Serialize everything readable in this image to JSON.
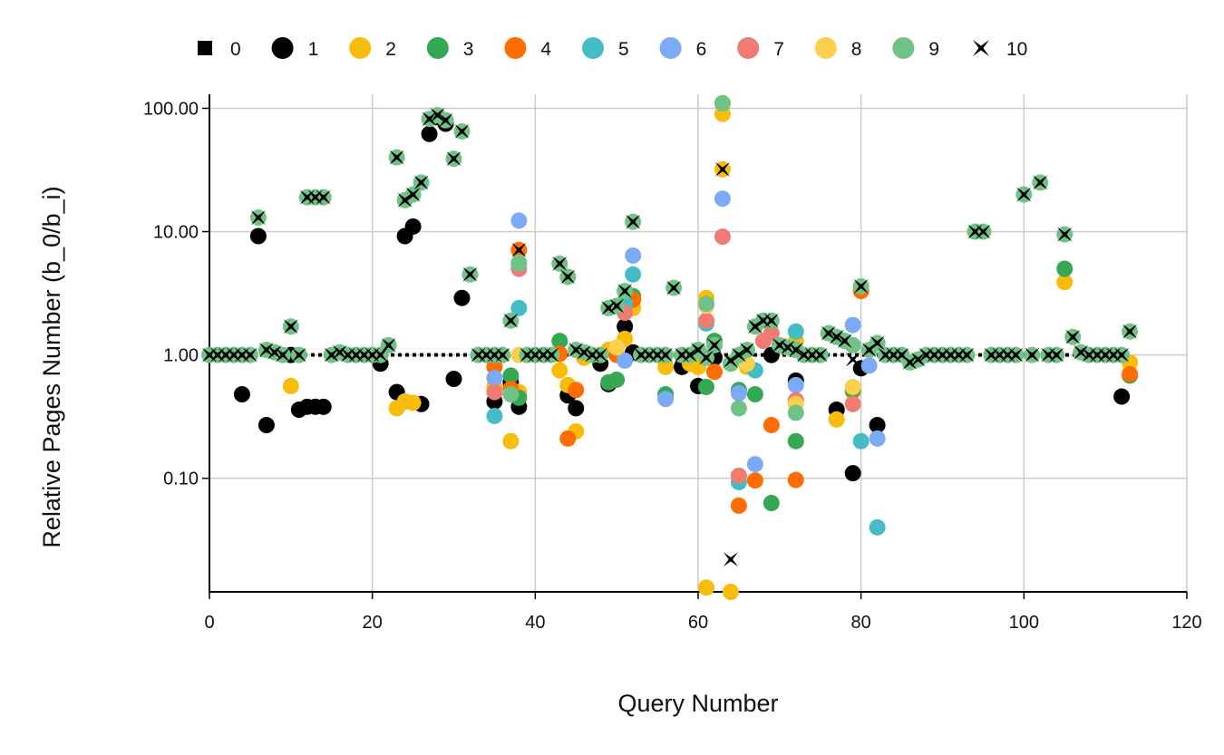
{
  "chart_data": {
    "type": "scatter",
    "xlabel": "Query Number",
    "ylabel": "Relative Pages Number (b_0/b_i)",
    "xlim": [
      0,
      120
    ],
    "ylim": [
      0.012,
      130
    ],
    "yscale": "log",
    "grid": true,
    "legend_position": "top",
    "x_ticks": [
      {
        "value": 0,
        "label": "0"
      },
      {
        "value": 20,
        "label": "20"
      },
      {
        "value": 40,
        "label": "40"
      },
      {
        "value": 60,
        "label": "60"
      },
      {
        "value": 80,
        "label": "80"
      },
      {
        "value": 100,
        "label": "100"
      },
      {
        "value": 120,
        "label": "120"
      }
    ],
    "y_ticks": [
      {
        "value": 0.1,
        "label": "0.10"
      },
      {
        "value": 1,
        "label": "1.00"
      },
      {
        "value": 10,
        "label": "10.00"
      },
      {
        "value": 100,
        "label": "100.00"
      }
    ],
    "series": [
      {
        "name": "0",
        "marker": "square",
        "color": "#000000",
        "style": "dotted-line",
        "x": [
          0,
          113
        ],
        "y": [
          1,
          1
        ]
      },
      {
        "name": "1",
        "marker": "circle",
        "color": "#000000",
        "x": [
          4,
          6,
          7,
          10,
          11,
          12,
          13,
          14,
          21,
          23,
          24,
          25,
          26,
          27,
          28,
          29,
          30,
          31,
          35,
          37,
          38,
          44,
          45,
          48,
          49,
          51,
          52,
          58,
          60,
          61,
          62,
          69,
          72,
          77,
          79,
          80,
          82,
          112
        ],
        "y": [
          0.48,
          9.2,
          0.27,
          1.0,
          0.36,
          0.38,
          0.38,
          0.38,
          0.85,
          0.5,
          9.2,
          11,
          0.4,
          62,
          85,
          75,
          0.64,
          2.9,
          0.42,
          0.6,
          0.38,
          0.47,
          0.37,
          0.85,
          0.58,
          1.7,
          1.05,
          0.8,
          0.56,
          0.95,
          0.95,
          1.0,
          0.62,
          0.36,
          0.11,
          0.78,
          0.27,
          0.46
        ]
      },
      {
        "name": "2",
        "marker": "circle",
        "color": "#f9bc0a",
        "x": [
          10,
          23,
          24,
          25,
          35,
          37,
          38,
          43,
          44,
          45,
          46,
          49,
          51,
          52,
          56,
          59,
          60,
          61,
          61,
          63,
          63,
          64,
          66,
          72,
          77,
          79,
          105,
          113
        ],
        "y": [
          0.56,
          0.37,
          0.42,
          0.41,
          0.55,
          0.2,
          0.5,
          0.75,
          0.57,
          0.24,
          0.95,
          1.1,
          1.35,
          2.4,
          0.8,
          0.85,
          0.8,
          0.013,
          2.9,
          90,
          32,
          0.012,
          0.8,
          1.3,
          0.3,
          0.5,
          3.9,
          0.87
        ]
      },
      {
        "name": "3",
        "marker": "circle",
        "color": "#34a853",
        "x": [
          37,
          38,
          43,
          49,
          50,
          52,
          56,
          61,
          62,
          65,
          67,
          69,
          72,
          79,
          105,
          113
        ],
        "y": [
          0.68,
          0.45,
          1.3,
          0.6,
          0.63,
          3.0,
          0.48,
          0.55,
          1.3,
          0.52,
          0.48,
          0.063,
          0.2,
          0.52,
          5.0,
          0.68
        ]
      },
      {
        "name": "4",
        "marker": "circle",
        "color": "#ff6d01",
        "x": [
          35,
          37,
          38,
          43,
          44,
          45,
          50,
          52,
          62,
          65,
          67,
          69,
          72,
          80,
          113
        ],
        "y": [
          0.8,
          0.53,
          7.1,
          1.02,
          0.21,
          0.52,
          1.0,
          2.8,
          0.73,
          0.06,
          0.096,
          0.27,
          0.097,
          3.3,
          0.7
        ]
      },
      {
        "name": "5",
        "marker": "circle",
        "color": "#46bdc6",
        "x": [
          35,
          38,
          51,
          52,
          61,
          65,
          67,
          72,
          80,
          82
        ],
        "y": [
          0.32,
          2.4,
          2.6,
          4.5,
          1.8,
          0.093,
          0.75,
          1.55,
          0.2,
          0.04
        ]
      },
      {
        "name": "6",
        "marker": "circle",
        "color": "#7baaf7",
        "x": [
          35,
          38,
          51,
          52,
          56,
          63,
          65,
          67,
          72,
          79,
          81,
          82
        ],
        "y": [
          0.65,
          12.3,
          0.9,
          6.4,
          0.44,
          18.5,
          0.49,
          0.13,
          0.57,
          1.75,
          0.82,
          0.21
        ]
      },
      {
        "name": "7",
        "marker": "circle",
        "color": "#f07b72",
        "x": [
          35,
          38,
          51,
          61,
          63,
          65,
          68,
          69,
          72,
          79
        ],
        "y": [
          0.5,
          5.0,
          2.2,
          1.9,
          9.1,
          0.105,
          1.3,
          1.5,
          0.43,
          0.4
        ]
      },
      {
        "name": "8",
        "marker": "circle",
        "color": "#fcd04f",
        "x": [
          38,
          50,
          61,
          66,
          72,
          79
        ],
        "y": [
          1.0,
          1.15,
          2.5,
          0.85,
          0.4,
          0.55
        ]
      },
      {
        "name": "9",
        "marker": "circle",
        "color": "#71c287",
        "x": [
          0,
          1,
          2,
          3,
          4,
          5,
          6,
          7,
          8,
          9,
          10,
          11,
          12,
          13,
          14,
          15,
          16,
          17,
          18,
          19,
          20,
          21,
          22,
          23,
          24,
          25,
          26,
          27,
          28,
          29,
          30,
          31,
          32,
          33,
          34,
          35,
          36,
          37,
          38,
          39,
          40,
          41,
          42,
          43,
          44,
          45,
          46,
          47,
          48,
          49,
          50,
          51,
          52,
          53,
          54,
          55,
          56,
          57,
          58,
          59,
          60,
          61,
          62,
          63,
          64,
          65,
          66,
          67,
          68,
          69,
          70,
          71,
          72,
          73,
          74,
          75,
          76,
          77,
          78,
          79,
          80,
          81,
          82,
          83,
          84,
          85,
          86,
          87,
          88,
          89,
          90,
          91,
          92,
          93,
          94,
          95,
          96,
          97,
          98,
          99,
          100,
          101,
          102,
          103,
          104,
          105,
          106,
          107,
          108,
          109,
          110,
          111,
          112,
          113,
          37,
          38,
          61,
          63,
          64,
          65,
          72
        ],
        "y": [
          1,
          1,
          1,
          1,
          1,
          1,
          13,
          1.1,
          1.05,
          1,
          1.7,
          1,
          19,
          19,
          19,
          1,
          1.05,
          1,
          1,
          1,
          1,
          1,
          1.2,
          40,
          18,
          20,
          25,
          82,
          88,
          80,
          39,
          65,
          4.5,
          1,
          1,
          1,
          1,
          1.9,
          5.5,
          1,
          1,
          1,
          1,
          5.5,
          4.3,
          1.1,
          1.05,
          1,
          1,
          2.4,
          2.5,
          3.3,
          12,
          1,
          1,
          1,
          1,
          3.5,
          1,
          1,
          1.1,
          0.95,
          1.2,
          110,
          0.85,
          1,
          1.1,
          1.7,
          1.9,
          1.9,
          1.2,
          1.15,
          1.1,
          1,
          1,
          1,
          1.5,
          1.4,
          1.3,
          1.2,
          3.6,
          1.1,
          1.25,
          1,
          1,
          1,
          0.87,
          0.92,
          1,
          1,
          1,
          1,
          1,
          1,
          10,
          10,
          1,
          1,
          1,
          1,
          20,
          1,
          25,
          1,
          1,
          9.5,
          1.4,
          1.05,
          1,
          1,
          1,
          1,
          1,
          1.55,
          0.48,
          5.6,
          2.6,
          110,
          0.85,
          0.37,
          0.34
        ]
      },
      {
        "name": "10",
        "marker": "x",
        "color": "#000000",
        "x": [
          0,
          1,
          2,
          3,
          4,
          5,
          6,
          7,
          8,
          9,
          10,
          11,
          12,
          13,
          14,
          15,
          16,
          17,
          18,
          19,
          20,
          21,
          22,
          23,
          24,
          25,
          26,
          27,
          28,
          29,
          30,
          31,
          32,
          33,
          34,
          35,
          36,
          37,
          38,
          39,
          40,
          41,
          42,
          43,
          44,
          45,
          46,
          47,
          48,
          49,
          50,
          51,
          52,
          53,
          54,
          55,
          56,
          57,
          58,
          59,
          60,
          61,
          62,
          63,
          64,
          65,
          66,
          67,
          68,
          69,
          70,
          71,
          72,
          73,
          74,
          75,
          76,
          77,
          78,
          79,
          80,
          81,
          82,
          83,
          84,
          85,
          86,
          87,
          88,
          89,
          90,
          91,
          92,
          93,
          94,
          95,
          96,
          97,
          98,
          99,
          100,
          101,
          102,
          103,
          104,
          105,
          106,
          107,
          108,
          109,
          110,
          111,
          112,
          113,
          64
        ],
        "y": [
          1,
          1,
          1,
          1,
          1,
          1,
          13,
          1.1,
          1.05,
          1,
          1.7,
          1,
          19,
          19,
          19,
          1,
          1.05,
          1,
          1,
          1,
          1,
          1,
          1.2,
          40,
          18,
          20,
          25,
          82,
          88,
          80,
          39,
          65,
          4.5,
          1,
          1,
          1,
          1,
          1.9,
          7.1,
          1,
          1,
          1,
          1,
          5.5,
          4.3,
          1.1,
          1.05,
          1,
          1,
          2.4,
          2.5,
          3.3,
          12,
          1,
          1,
          1,
          1,
          3.5,
          1,
          1,
          1.1,
          0.95,
          1.2,
          32,
          0.9,
          1,
          1.1,
          1.7,
          1.9,
          1.9,
          1.2,
          1.15,
          1.1,
          1,
          1,
          1,
          1.5,
          1.4,
          1.3,
          0.92,
          3.6,
          1.1,
          1.25,
          1,
          1,
          1,
          0.87,
          0.92,
          1,
          1,
          1,
          1,
          1,
          1,
          10,
          10,
          1,
          1,
          1,
          1,
          20,
          1,
          25,
          1,
          1,
          9.5,
          1.4,
          1.05,
          1,
          1,
          1,
          1,
          1,
          1.55,
          0.022
        ]
      }
    ]
  }
}
